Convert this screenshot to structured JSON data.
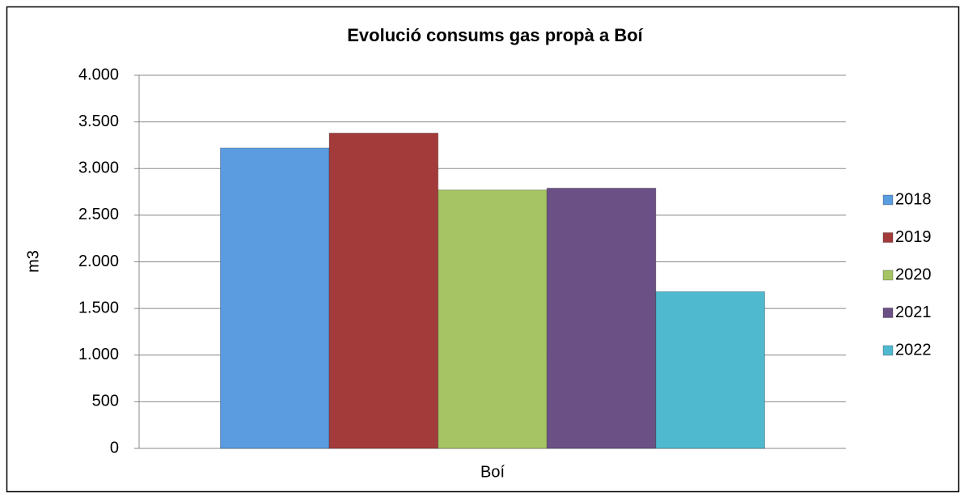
{
  "chart_data": {
    "type": "bar",
    "title": "Evolució consums gas propà a Boí",
    "y_label": "m3",
    "categories": [
      "Boí"
    ],
    "series": [
      {
        "name": "2018",
        "color": "#5b9be0",
        "values": [
          3220
        ]
      },
      {
        "name": "2019",
        "color": "#a33b3b",
        "values": [
          3380
        ]
      },
      {
        "name": "2020",
        "color": "#a6c463",
        "values": [
          2770
        ]
      },
      {
        "name": "2021",
        "color": "#6b5086",
        "values": [
          2790
        ]
      },
      {
        "name": "2022",
        "color": "#4fb9cf",
        "values": [
          1680
        ]
      }
    ],
    "ylim": [
      0,
      4000
    ],
    "yticks": [
      0,
      500,
      {
        "value": 1000,
        "label": "1.000"
      },
      {
        "value": 1500,
        "label": "1.500"
      },
      {
        "value": 2000,
        "label": "2.000"
      },
      {
        "value": 2500,
        "label": "2.500"
      },
      {
        "value": 3000,
        "label": "3.000"
      },
      {
        "value": 3500,
        "label": "3.500"
      },
      {
        "value": 4000,
        "label": "4.000"
      }
    ],
    "grid": true,
    "legend": "right"
  }
}
